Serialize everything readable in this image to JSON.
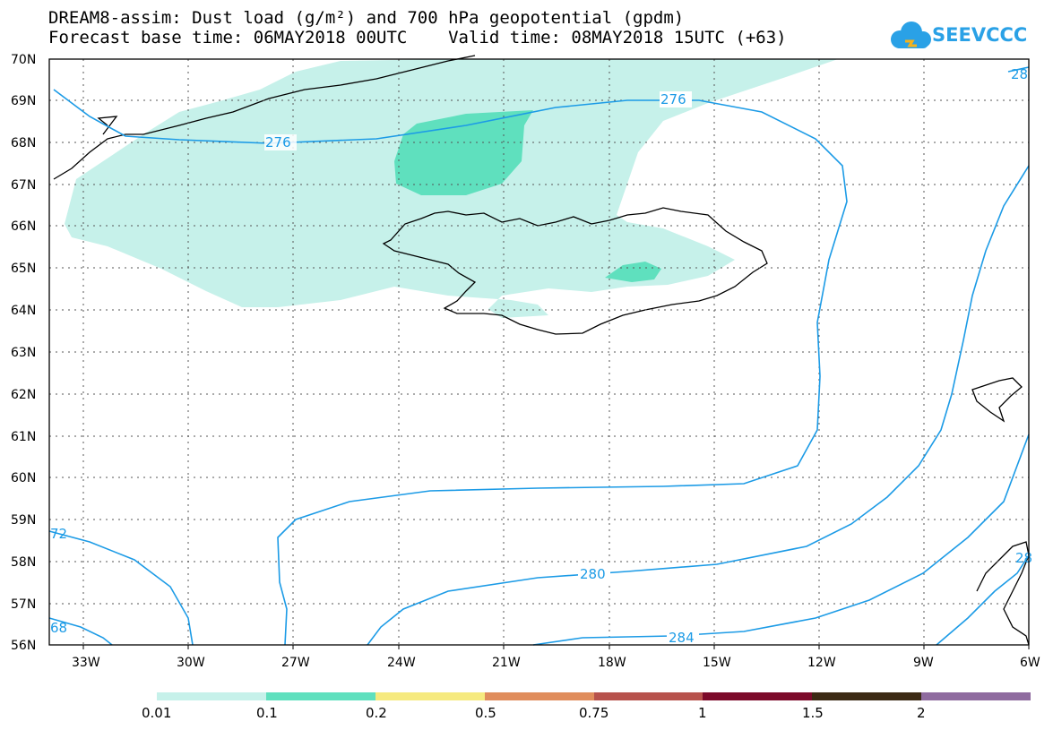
{
  "header": {
    "title_line1": "DREAM8-assim: Dust load (g/m²) and 700 hPa geopotential (gpdm)",
    "title_line2": "Forecast base time: 06MAY2018 00UTC    Valid time: 08MAY2018 15UTC (+63)"
  },
  "logo": {
    "text": "SEEVCCC",
    "icon": "cloud-icon"
  },
  "map": {
    "lat_labels": [
      "70N",
      "69N",
      "68N",
      "67N",
      "66N",
      "65N",
      "64N",
      "63N",
      "62N",
      "61N",
      "60N",
      "59N",
      "58N",
      "57N",
      "56N"
    ],
    "lon_labels": [
      "33W",
      "30W",
      "27W",
      "24W",
      "21W",
      "18W",
      "15W",
      "12W",
      "9W",
      "6W"
    ],
    "contour_labels": [
      "276",
      "276",
      "280",
      "284",
      "72",
      "68",
      "28",
      "28"
    ],
    "contour_color": "#1c9be6",
    "dust_colors": {
      "light": "#c6f1ea",
      "medium": "#5fe0be"
    }
  },
  "legend": {
    "labels": [
      "0.01",
      "0.1",
      "0.2",
      "0.5",
      "0.75",
      "1",
      "1.5",
      "2"
    ],
    "colors": [
      "#c6f1ea",
      "#5fe0be",
      "#f6ea7f",
      "#e08d5c",
      "#b7524c",
      "#7c0a2a",
      "#3c2a14",
      "#8f6b9f"
    ]
  }
}
